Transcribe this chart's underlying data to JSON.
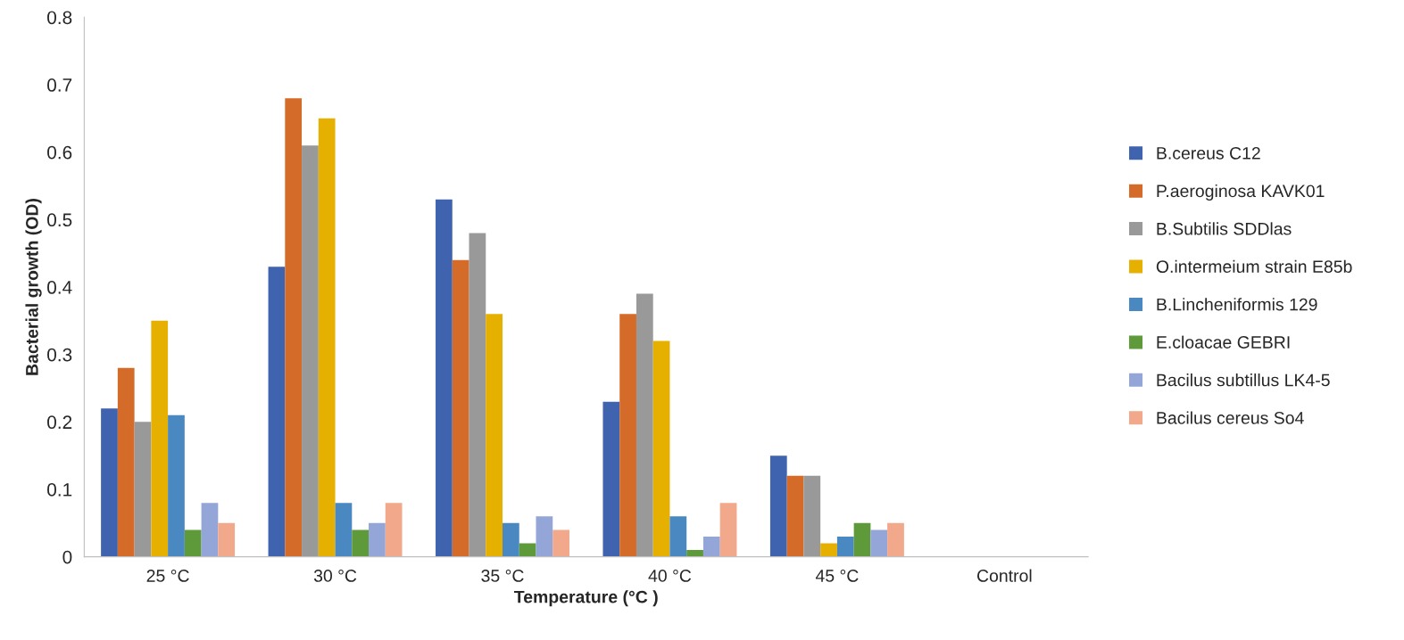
{
  "chart_data": {
    "type": "bar",
    "xlabel": "Temperature (°C )",
    "ylabel": "Bacterial growth (OD)",
    "categories": [
      "25 °C",
      "30 °C",
      "35 °C",
      "40 °C",
      "45 °C",
      "Control"
    ],
    "series": [
      {
        "name": "B.cereus C12",
        "color": "#4063b0",
        "values": [
          0.22,
          0.43,
          0.53,
          0.23,
          0.15,
          null
        ]
      },
      {
        "name": "P.aeroginosa KAVK01",
        "color": "#d56b28",
        "values": [
          0.28,
          0.68,
          0.44,
          0.36,
          0.12,
          null
        ]
      },
      {
        "name": "B.Subtilis SDDlas",
        "color": "#999999",
        "values": [
          0.2,
          0.61,
          0.48,
          0.39,
          0.12,
          null
        ]
      },
      {
        "name": "O.intermeium strain E85b",
        "color": "#e6b000",
        "values": [
          0.35,
          0.65,
          0.36,
          0.32,
          0.02,
          null
        ]
      },
      {
        "name": "B.Lincheniformis 129",
        "color": "#4a88c2",
        "values": [
          0.21,
          0.08,
          0.05,
          0.06,
          0.03,
          null
        ]
      },
      {
        "name": "E.cloacae GEBRI",
        "color": "#5f9a3a",
        "values": [
          0.04,
          0.04,
          0.02,
          0.01,
          0.05,
          null
        ]
      },
      {
        "name": "Bacilus subtillus LK4-5",
        "color": "#94a6d8",
        "values": [
          0.08,
          0.05,
          0.06,
          0.03,
          0.04,
          null
        ]
      },
      {
        "name": "Bacilus cereus So4",
        "color": "#f2a88a",
        "values": [
          0.05,
          0.08,
          0.04,
          0.08,
          0.05,
          null
        ]
      }
    ],
    "ylim": [
      0,
      0.8
    ],
    "yticks": [
      {
        "value": 0,
        "label": "0"
      },
      0.1,
      0.2,
      0.3,
      0.4,
      0.5,
      0.6,
      0.7,
      0.8
    ],
    "grid": false,
    "legend": "right"
  }
}
